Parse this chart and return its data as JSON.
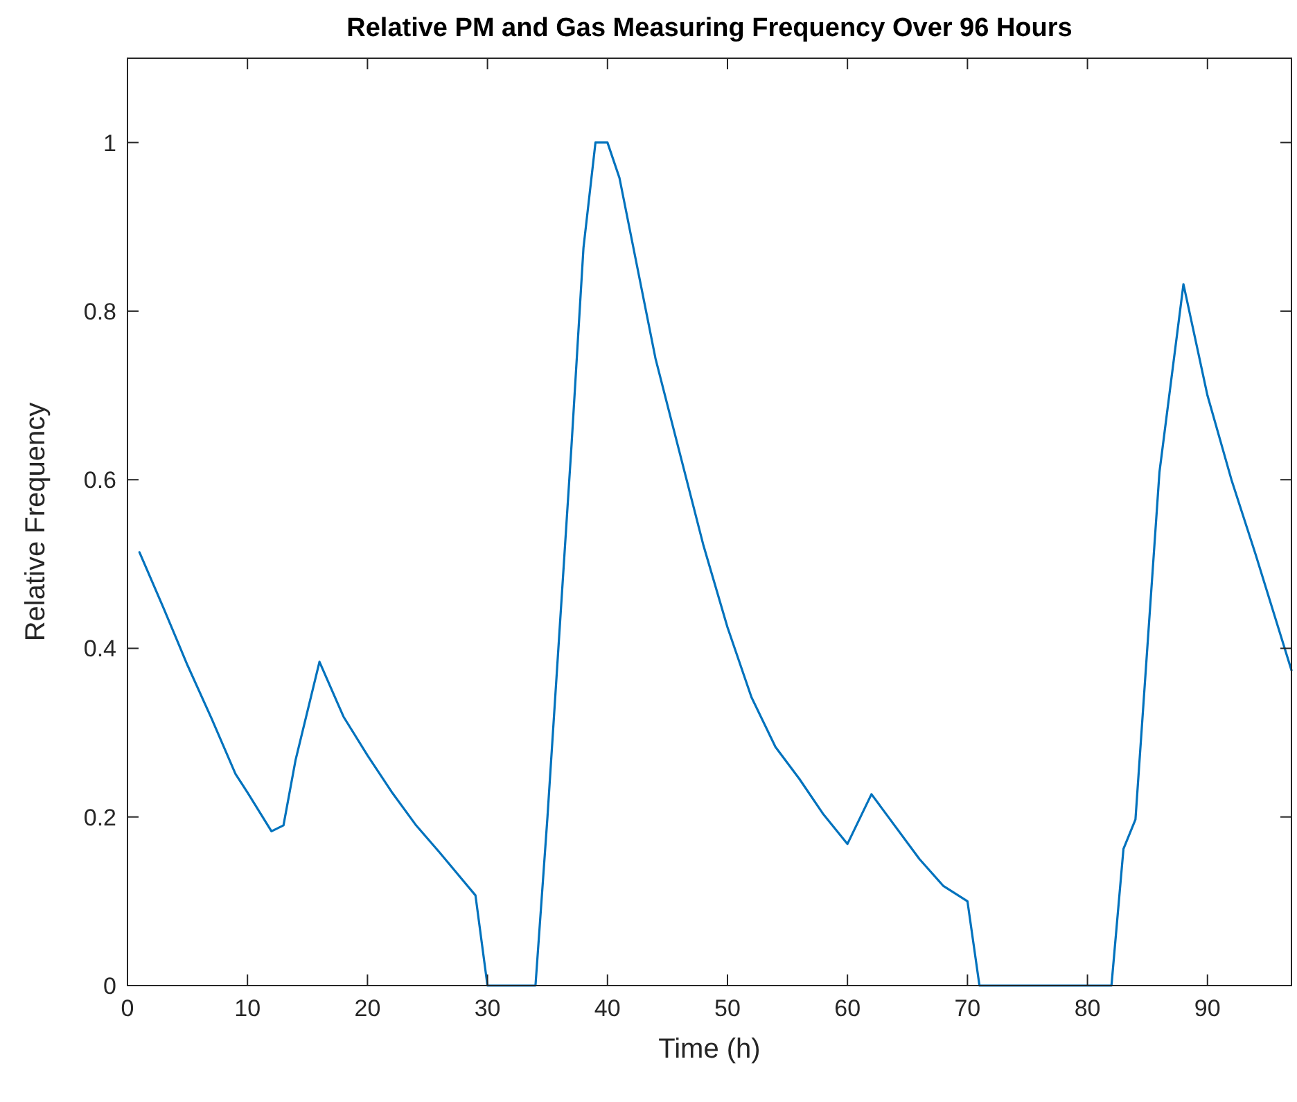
{
  "chart_data": {
    "type": "line",
    "title": "Relative PM and Gas Measuring Frequency Over 96 Hours",
    "xlabel": "Time (h)",
    "ylabel": "Relative Frequency",
    "x": [
      1,
      3,
      5,
      7,
      9,
      10,
      12,
      13,
      14,
      16,
      18,
      20,
      22,
      24,
      26,
      29,
      30,
      34,
      35,
      36,
      37,
      38,
      39,
      40,
      41,
      44,
      46,
      48,
      50,
      52,
      54,
      56,
      58,
      60,
      62,
      66,
      68,
      70,
      71,
      82,
      83,
      84,
      86,
      88,
      90,
      92,
      94,
      97
    ],
    "series": [
      {
        "color": "#0072bd",
        "values": [
          0.514,
          0.448,
          0.38,
          0.317,
          0.251,
          0.229,
          0.183,
          0.19,
          0.267,
          0.384,
          0.319,
          0.273,
          0.23,
          0.191,
          0.158,
          0.107,
          0,
          0,
          0.2,
          0.42,
          0.64,
          0.875,
          1,
          1,
          0.958,
          0.744,
          0.633,
          0.522,
          0.425,
          0.342,
          0.283,
          0.245,
          0.203,
          0.168,
          0.227,
          0.15,
          0.118,
          0.1,
          0,
          0,
          0.162,
          0.197,
          0.609,
          0.832,
          0.7,
          0.6,
          0.512,
          0.374
        ]
      }
    ],
    "xlim": [
      0,
      97
    ],
    "xticks": [
      0,
      10,
      20,
      30,
      40,
      50,
      60,
      70,
      80,
      90
    ],
    "ylim": [
      0,
      1.1
    ],
    "yticks": [
      0,
      0.2,
      0.4,
      0.6,
      0.8,
      1
    ],
    "grid": false,
    "marker": "none",
    "line_style": "solid"
  }
}
